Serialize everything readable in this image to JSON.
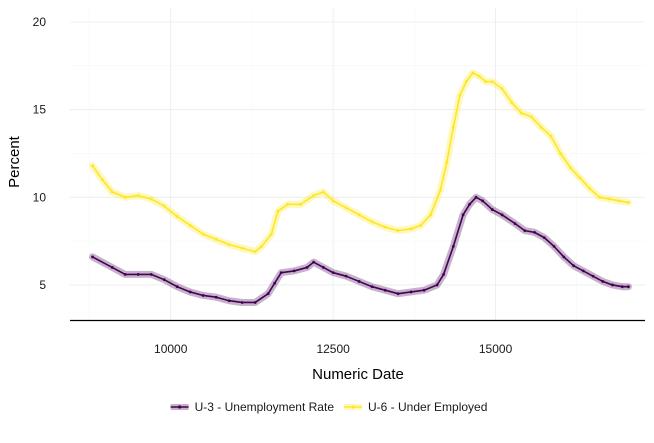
{
  "chart_data": {
    "type": "line",
    "title": "",
    "xlabel": "Numeric Date",
    "ylabel": "Percent",
    "xlim": [
      8450,
      17300
    ],
    "ylim": [
      3.0,
      20.8
    ],
    "x_ticks": [
      10000,
      12500,
      15000
    ],
    "y_ticks": [
      5,
      10,
      15,
      20
    ],
    "grid": true,
    "legend_position": "bottom",
    "series": [
      {
        "name": "U-3 - Unemployment Rate",
        "color": "#440154",
        "band_color": "#440154",
        "points": [
          [
            8797,
            6.6
          ],
          [
            9100,
            6.0
          ],
          [
            9300,
            5.6
          ],
          [
            9500,
            5.6
          ],
          [
            9700,
            5.6
          ],
          [
            9900,
            5.3
          ],
          [
            10100,
            4.9
          ],
          [
            10300,
            4.6
          ],
          [
            10500,
            4.4
          ],
          [
            10700,
            4.3
          ],
          [
            10900,
            4.1
          ],
          [
            11100,
            4.0
          ],
          [
            11300,
            4.0
          ],
          [
            11500,
            4.5
          ],
          [
            11600,
            5.1
          ],
          [
            11700,
            5.7
          ],
          [
            11900,
            5.8
          ],
          [
            12100,
            6.0
          ],
          [
            12200,
            6.3
          ],
          [
            12350,
            6.0
          ],
          [
            12500,
            5.7
          ],
          [
            12700,
            5.5
          ],
          [
            12900,
            5.2
          ],
          [
            13100,
            4.9
          ],
          [
            13300,
            4.7
          ],
          [
            13500,
            4.5
          ],
          [
            13700,
            4.6
          ],
          [
            13900,
            4.7
          ],
          [
            14100,
            5.0
          ],
          [
            14200,
            5.6
          ],
          [
            14350,
            7.2
          ],
          [
            14500,
            9.0
          ],
          [
            14600,
            9.6
          ],
          [
            14700,
            10.0
          ],
          [
            14800,
            9.8
          ],
          [
            14950,
            9.3
          ],
          [
            15100,
            9.0
          ],
          [
            15300,
            8.5
          ],
          [
            15450,
            8.1
          ],
          [
            15600,
            8.0
          ],
          [
            15750,
            7.7
          ],
          [
            15900,
            7.2
          ],
          [
            16050,
            6.6
          ],
          [
            16200,
            6.1
          ],
          [
            16350,
            5.8
          ],
          [
            16500,
            5.5
          ],
          [
            16650,
            5.2
          ],
          [
            16800,
            5.0
          ],
          [
            16950,
            4.9
          ],
          [
            17045,
            4.9
          ]
        ]
      },
      {
        "name": "U-6 - Under Employed",
        "color": "#fde725",
        "band_color": "#fde725",
        "points": [
          [
            8797,
            11.8
          ],
          [
            8950,
            11.0
          ],
          [
            9100,
            10.3
          ],
          [
            9300,
            10.0
          ],
          [
            9500,
            10.1
          ],
          [
            9700,
            9.9
          ],
          [
            9900,
            9.5
          ],
          [
            10100,
            8.9
          ],
          [
            10300,
            8.4
          ],
          [
            10500,
            7.9
          ],
          [
            10700,
            7.6
          ],
          [
            10900,
            7.3
          ],
          [
            11100,
            7.1
          ],
          [
            11300,
            6.9
          ],
          [
            11400,
            7.2
          ],
          [
            11550,
            7.9
          ],
          [
            11650,
            9.2
          ],
          [
            11800,
            9.6
          ],
          [
            12000,
            9.6
          ],
          [
            12200,
            10.1
          ],
          [
            12350,
            10.3
          ],
          [
            12500,
            9.8
          ],
          [
            12700,
            9.4
          ],
          [
            12900,
            9.0
          ],
          [
            13100,
            8.6
          ],
          [
            13300,
            8.3
          ],
          [
            13500,
            8.1
          ],
          [
            13700,
            8.2
          ],
          [
            13850,
            8.4
          ],
          [
            14000,
            9.0
          ],
          [
            14150,
            10.4
          ],
          [
            14250,
            12.0
          ],
          [
            14350,
            14.0
          ],
          [
            14450,
            15.8
          ],
          [
            14550,
            16.6
          ],
          [
            14650,
            17.1
          ],
          [
            14750,
            16.9
          ],
          [
            14850,
            16.6
          ],
          [
            14950,
            16.6
          ],
          [
            15100,
            16.2
          ],
          [
            15250,
            15.4
          ],
          [
            15400,
            14.8
          ],
          [
            15550,
            14.6
          ],
          [
            15700,
            14.0
          ],
          [
            15850,
            13.5
          ],
          [
            16000,
            12.5
          ],
          [
            16150,
            11.7
          ],
          [
            16300,
            11.1
          ],
          [
            16450,
            10.5
          ],
          [
            16600,
            10.0
          ],
          [
            16750,
            9.9
          ],
          [
            16900,
            9.8
          ],
          [
            17045,
            9.7
          ]
        ]
      }
    ]
  }
}
